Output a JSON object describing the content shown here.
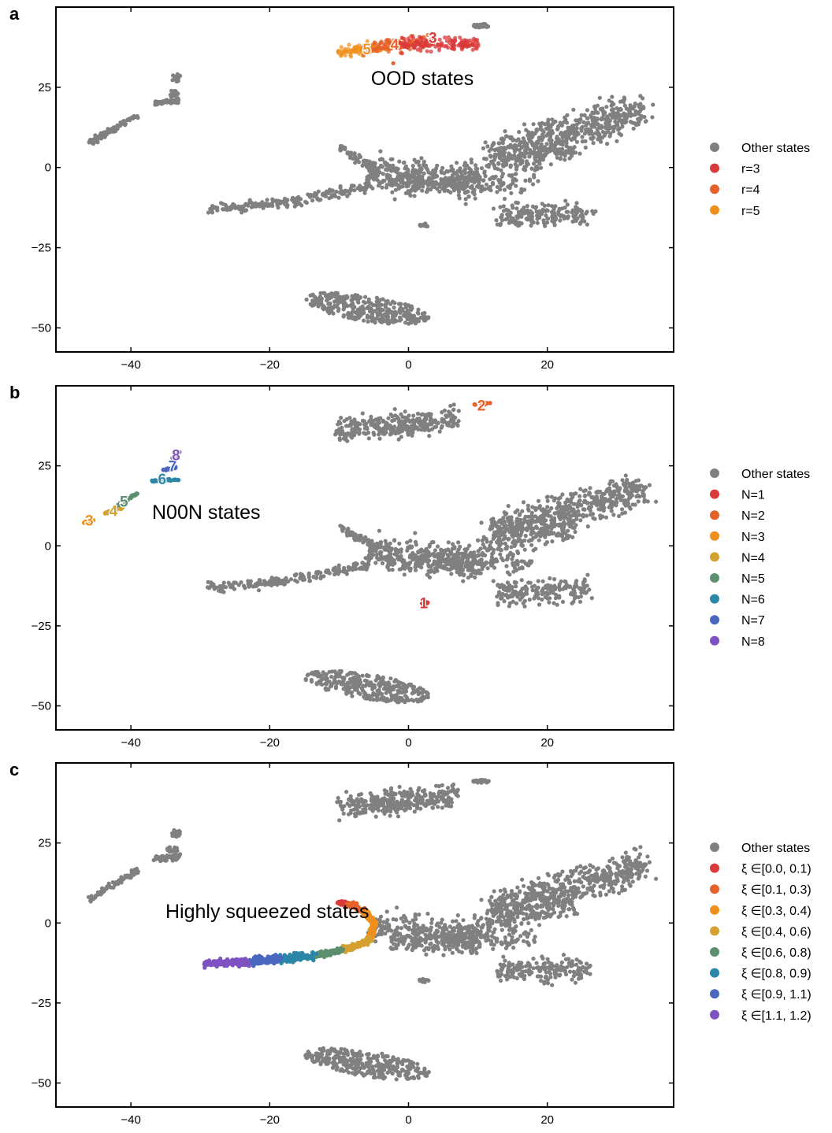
{
  "chart_data": [
    {
      "type": "scatter",
      "panel": "a",
      "annotation": "OOD states",
      "xlim": [
        -50.8,
        38.2
      ],
      "ylim": [
        -57.5,
        50.0
      ],
      "xticks": [
        -40,
        -20,
        0,
        20
      ],
      "yticks": [
        25,
        0,
        -25,
        -50
      ],
      "xtick_labels": [
        "−40",
        "−20",
        "0",
        "20"
      ],
      "ytick_labels": [
        "25",
        "0",
        "−25",
        "−50"
      ],
      "background_series": "Other states",
      "series": [
        {
          "name": "Other states",
          "color": "#808080"
        },
        {
          "name": "r=3",
          "color": "#d93a3a",
          "marker_label": "3",
          "center": [
            3.5,
            40.5
          ]
        },
        {
          "name": "r=4",
          "color": "#e5622a",
          "marker_label": "4",
          "center": [
            -2.0,
            38.5
          ]
        },
        {
          "name": "r=5",
          "color": "#f0901c",
          "marker_label": "5",
          "center": [
            -6.0,
            37.0
          ]
        }
      ],
      "highlight": "ood"
    },
    {
      "type": "scatter",
      "panel": "b",
      "annotation": "N00N states",
      "xlim": [
        -50.8,
        38.2
      ],
      "ylim": [
        -57.5,
        50.0
      ],
      "xticks": [
        -40,
        -20,
        0,
        20
      ],
      "yticks": [
        25,
        0,
        -25,
        -50
      ],
      "xtick_labels": [
        "−40",
        "−20",
        "0",
        "20"
      ],
      "ytick_labels": [
        "25",
        "0",
        "−25",
        "−50"
      ],
      "background_series": "Other states",
      "series": [
        {
          "name": "Other states",
          "color": "#808080"
        },
        {
          "name": "N=1",
          "color": "#d93a3a",
          "marker_label": "1",
          "center": [
            2.2,
            -17.8
          ]
        },
        {
          "name": "N=2",
          "color": "#e5622a",
          "marker_label": "2",
          "center": [
            10.5,
            44.0
          ]
        },
        {
          "name": "N=3",
          "color": "#f0901c",
          "marker_label": "3",
          "center": [
            -46.0,
            8.0
          ]
        },
        {
          "name": "N=4",
          "color": "#d4a030",
          "marker_label": "4",
          "center": [
            -42.5,
            11.0
          ]
        },
        {
          "name": "N=5",
          "color": "#5b8f6e",
          "marker_label": "5",
          "center": [
            -41.0,
            14.0
          ]
        },
        {
          "name": "N=6",
          "color": "#2b87a8",
          "marker_label": "6",
          "center": [
            -35.5,
            21.0
          ]
        },
        {
          "name": "N=7",
          "color": "#4a67c0",
          "marker_label": "7",
          "center": [
            -34.0,
            25.0
          ]
        },
        {
          "name": "N=8",
          "color": "#7e52c0",
          "marker_label": "8",
          "center": [
            -33.5,
            28.5
          ]
        }
      ],
      "highlight": "noon"
    },
    {
      "type": "scatter",
      "panel": "c",
      "annotation": "Highly squeezed states",
      "xlim": [
        -50.8,
        38.2
      ],
      "ylim": [
        -57.5,
        50.0
      ],
      "xticks": [
        -40,
        -20,
        0,
        20
      ],
      "yticks": [
        25,
        0,
        -25,
        -50
      ],
      "xtick_labels": [
        "−40",
        "−20",
        "0",
        "20"
      ],
      "ytick_labels": [
        "25",
        "0",
        "−25",
        "−50"
      ],
      "background_series": "Other states",
      "series": [
        {
          "name": "Other states",
          "color": "#808080"
        },
        {
          "name": "ξ ∈[0.0, 0.1)",
          "color": "#d93a3a"
        },
        {
          "name": "ξ ∈[0.1, 0.3)",
          "color": "#e5622a"
        },
        {
          "name": "ξ ∈[0.3, 0.4)",
          "color": "#f0901c"
        },
        {
          "name": "ξ ∈[0.4, 0.6)",
          "color": "#d4a030"
        },
        {
          "name": "ξ ∈[0.6, 0.8)",
          "color": "#5b8f6e"
        },
        {
          "name": "ξ ∈[0.8, 0.9)",
          "color": "#2b87a8"
        },
        {
          "name": "ξ ∈[0.9, 1.1)",
          "color": "#4a67c0"
        },
        {
          "name": "ξ ∈[1.1, 1.2)",
          "color": "#7e52c0"
        }
      ],
      "highlight": "squeezed"
    }
  ]
}
